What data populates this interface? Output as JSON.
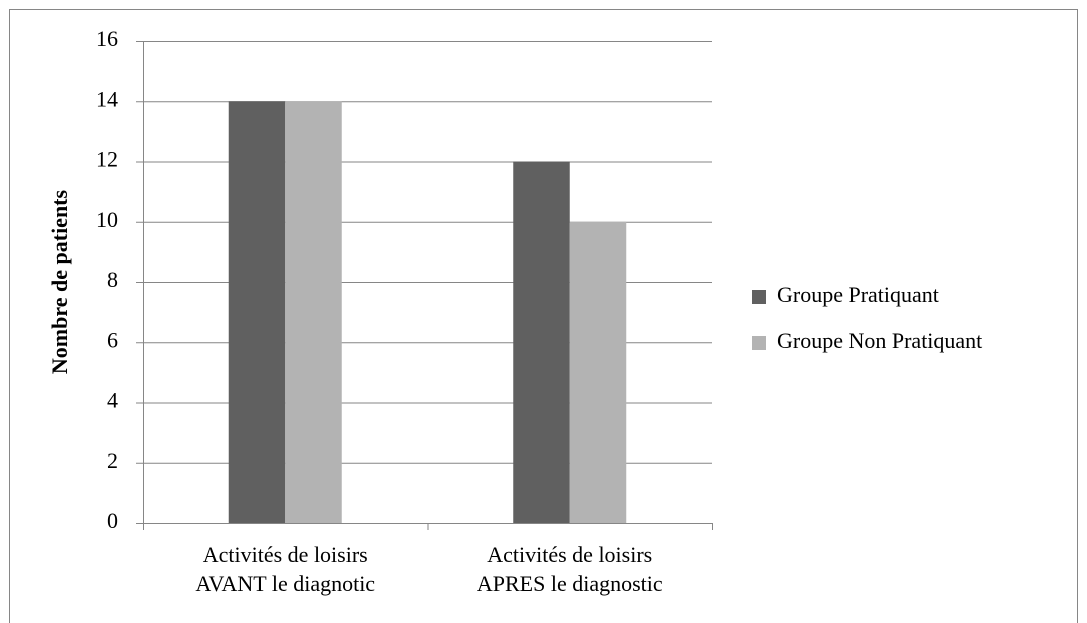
{
  "chart_data": {
    "type": "bar",
    "ylabel": "Nombre de patients",
    "categories": [
      [
        "Activités de loisirs",
        "AVANT le diagnotic"
      ],
      [
        "Activités de loisirs",
        "APRES le diagnostic"
      ]
    ],
    "series": [
      {
        "name": "Groupe Pratiquant",
        "color": "#606060",
        "values": [
          14,
          12
        ]
      },
      {
        "name": "Groupe Non Pratiquant",
        "color": "#b3b3b3",
        "values": [
          14,
          10
        ]
      }
    ],
    "ylim": [
      0,
      16
    ],
    "yticks": [
      0,
      2,
      4,
      6,
      8,
      10,
      12,
      14,
      16
    ],
    "grid": true,
    "legend": "right"
  }
}
